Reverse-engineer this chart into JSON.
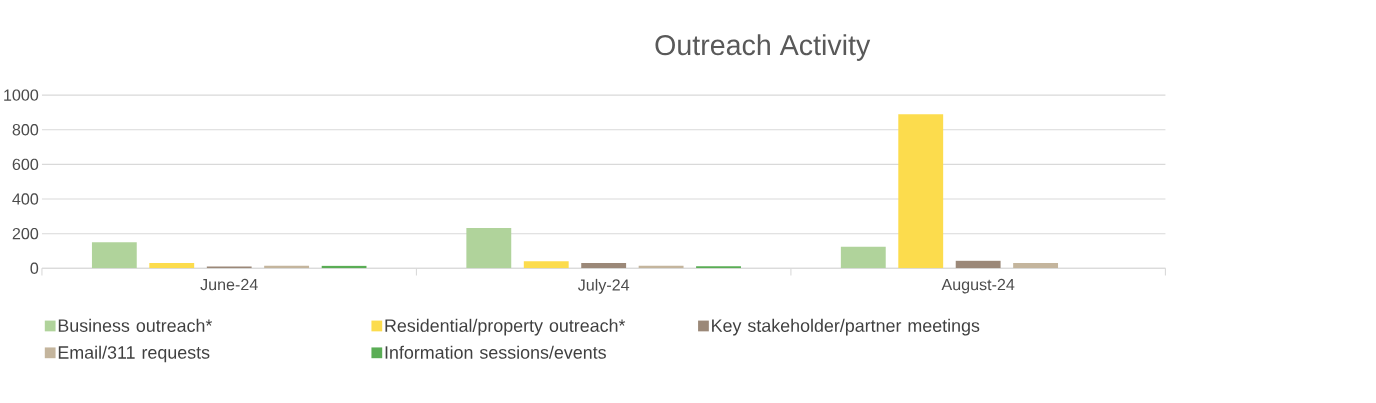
{
  "chart_data": {
    "type": "bar",
    "title": "Outreach Activity",
    "categories": [
      "June-24",
      "July-24",
      "August-24"
    ],
    "series": [
      {
        "name": "Business outreach*",
        "color": "#b0d39b",
        "values": [
          150,
          233,
          125
        ]
      },
      {
        "name": "Residential/property outreach*",
        "color": "#fcdc4d",
        "values": [
          31,
          41,
          889
        ]
      },
      {
        "name": "Key stakeholder/partner meetings",
        "color": "#9b8878",
        "values": [
          10,
          31,
          43
        ]
      },
      {
        "name": "Email/311 requests",
        "color": "#c4b59d",
        "values": [
          15,
          15,
          31
        ]
      },
      {
        "name": "Information sessions/events",
        "color": "#5aad55",
        "values": [
          15,
          12,
          0
        ]
      }
    ],
    "ylim": [
      0,
      1000
    ],
    "yticks": [
      0,
      200,
      400,
      600,
      800,
      1000
    ],
    "grid": "y",
    "legend": "bottom"
  }
}
